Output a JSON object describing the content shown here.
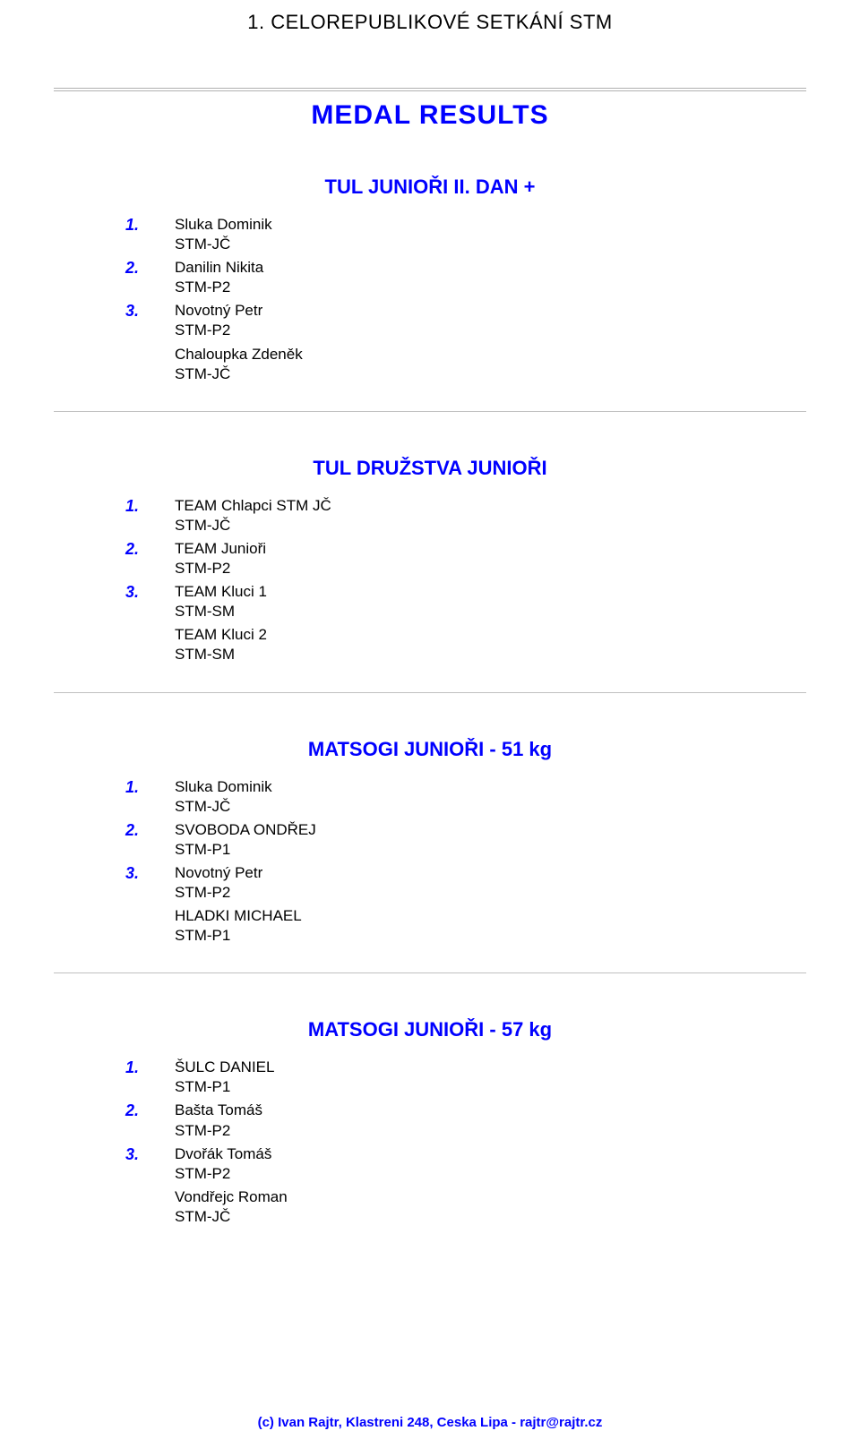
{
  "header_title": "1. CELOREPUBLIKOVÉ SETKÁNÍ STM",
  "main_title": "MEDAL RESULTS",
  "sections": [
    {
      "title": "TUL JUNIOŘI II. DAN +",
      "results": [
        {
          "rank": "1.",
          "name": "Sluka Dominik",
          "sub": "STM-JČ"
        },
        {
          "rank": "2.",
          "name": "Danilin Nikita",
          "sub": "STM-P2"
        },
        {
          "rank": "3.",
          "name": "Novotný Petr",
          "sub": "STM-P2"
        }
      ],
      "unranked": [
        {
          "name": "Chaloupka Zdeněk",
          "sub": "STM-JČ"
        }
      ]
    },
    {
      "title": "TUL DRUŽSTVA JUNIOŘI",
      "results": [
        {
          "rank": "1.",
          "name": "TEAM   Chlapci STM JČ",
          "sub": "STM-JČ"
        },
        {
          "rank": "2.",
          "name": "TEAM   Junioři",
          "sub": "STM-P2"
        },
        {
          "rank": "3.",
          "name": "TEAM   Kluci 1",
          "sub": "STM-SM"
        }
      ],
      "unranked": [
        {
          "name": "TEAM   Kluci 2",
          "sub": "STM-SM"
        }
      ]
    },
    {
      "title": "MATSOGI JUNIOŘI  - 51 kg",
      "results": [
        {
          "rank": "1.",
          "name": "Sluka Dominik",
          "sub": "STM-JČ"
        },
        {
          "rank": "2.",
          "name": "SVOBODA ONDŘEJ",
          "sub": "STM-P1"
        },
        {
          "rank": "3.",
          "name": "Novotný Petr",
          "sub": "STM-P2"
        }
      ],
      "unranked": [
        {
          "name": "HLADKI MICHAEL",
          "sub": "STM-P1"
        }
      ]
    },
    {
      "title": "MATSOGI JUNIOŘI  - 57 kg",
      "results": [
        {
          "rank": "1.",
          "name": "ŠULC DANIEL",
          "sub": "STM-P1"
        },
        {
          "rank": "2.",
          "name": "Bašta Tomáš",
          "sub": "STM-P2"
        },
        {
          "rank": "3.",
          "name": "Dvořák Tomáš",
          "sub": "STM-P2"
        }
      ],
      "unranked": [
        {
          "name": "Vondřejc Roman",
          "sub": "STM-JČ"
        }
      ]
    }
  ],
  "footer": "(c) Ivan Rajtr, Klastreni 248, Ceska Lipa - rajtr@rajtr.cz",
  "colors": {
    "blue": "#0000ff",
    "black": "#000000",
    "hr": "#c0c0c0",
    "background": "#ffffff"
  }
}
